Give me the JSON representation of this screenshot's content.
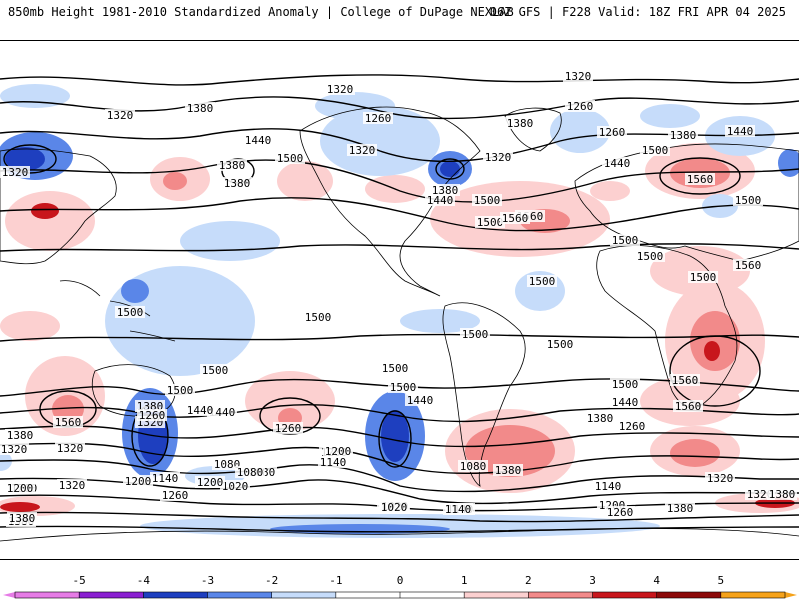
{
  "header": {
    "left": "850mb Height 1981-2010 Standardized Anomaly | College of DuPage NEXLAB",
    "right": "06Z GFS | F228 Valid: 18Z FRI APR 04 2025"
  },
  "colors": {
    "neg5": "#e67ce6",
    "neg4": "#8a1fd1",
    "neg3": "#1e3fbf",
    "neg2": "#5a86e8",
    "neg1": "#c6dcfa",
    "zero": "#ffffff",
    "pos1": "#fcd0d0",
    "pos2": "#f28a8a",
    "pos3": "#c8161c",
    "pos4": "#8c0a0a",
    "pos5": "#f5a21a"
  },
  "legend": {
    "ticks": [
      "-5",
      "-4",
      "-3",
      "-2",
      "-1",
      "0",
      "1",
      "2",
      "3",
      "4",
      "5"
    ]
  },
  "contour_labels": [
    {
      "text": "1320",
      "lat": null
    },
    {
      "text": "1320"
    },
    {
      "text": "1380"
    },
    {
      "text": "1440"
    },
    {
      "text": "1380"
    },
    {
      "text": "1500"
    },
    {
      "text": "1320"
    },
    {
      "text": "1260"
    },
    {
      "text": "1320"
    },
    {
      "text": "1380"
    },
    {
      "text": "1500"
    },
    {
      "text": "1560"
    },
    {
      "text": "1440"
    },
    {
      "text": "1500"
    },
    {
      "text": "1560"
    },
    {
      "text": "1320"
    },
    {
      "text": "1260"
    },
    {
      "text": "1320"
    },
    {
      "text": "1380"
    },
    {
      "text": "1440"
    },
    {
      "text": "1500"
    },
    {
      "text": "1560"
    },
    {
      "text": "1500"
    },
    {
      "text": "1500"
    },
    {
      "text": "1380"
    },
    {
      "text": "1440"
    },
    {
      "text": "1500"
    },
    {
      "text": "1560"
    },
    {
      "text": "1500"
    },
    {
      "text": "1500"
    },
    {
      "text": "1500"
    },
    {
      "text": "1500"
    },
    {
      "text": "1500"
    },
    {
      "text": "1500"
    },
    {
      "text": "1500"
    },
    {
      "text": "1500"
    },
    {
      "text": "1560"
    },
    {
      "text": "1440"
    },
    {
      "text": "1380"
    },
    {
      "text": "1260"
    },
    {
      "text": "1560"
    },
    {
      "text": "1500"
    },
    {
      "text": "1440"
    },
    {
      "text": "1380"
    },
    {
      "text": "1260"
    },
    {
      "text": "1200"
    },
    {
      "text": "1140"
    },
    {
      "text": "1320"
    },
    {
      "text": "1500"
    },
    {
      "text": "1440"
    },
    {
      "text": "1380"
    },
    {
      "text": "1320"
    },
    {
      "text": "1260"
    },
    {
      "text": "1080"
    },
    {
      "text": "1380"
    },
    {
      "text": "1200"
    },
    {
      "text": "1500"
    },
    {
      "text": "1440"
    },
    {
      "text": "1380"
    },
    {
      "text": "1320"
    },
    {
      "text": "1260"
    },
    {
      "text": "1560"
    },
    {
      "text": "1140"
    },
    {
      "text": "1200"
    },
    {
      "text": "1260"
    },
    {
      "text": "1320"
    },
    {
      "text": "1380"
    },
    {
      "text": "1200"
    },
    {
      "text": "1320"
    },
    {
      "text": "1020"
    },
    {
      "text": "1080"
    },
    {
      "text": "1140"
    },
    {
      "text": "1080"
    },
    {
      "text": "1200"
    },
    {
      "text": "1260"
    },
    {
      "text": "1200"
    },
    {
      "text": "1380"
    },
    {
      "text": "1020"
    },
    {
      "text": "1140"
    },
    {
      "text": "1320"
    },
    {
      "text": "1380"
    },
    {
      "text": "1380"
    },
    {
      "text": "1200"
    },
    {
      "text": "1080"
    },
    {
      "text": "1200"
    },
    {
      "text": "1020"
    },
    {
      "text": "1140"
    }
  ]
}
